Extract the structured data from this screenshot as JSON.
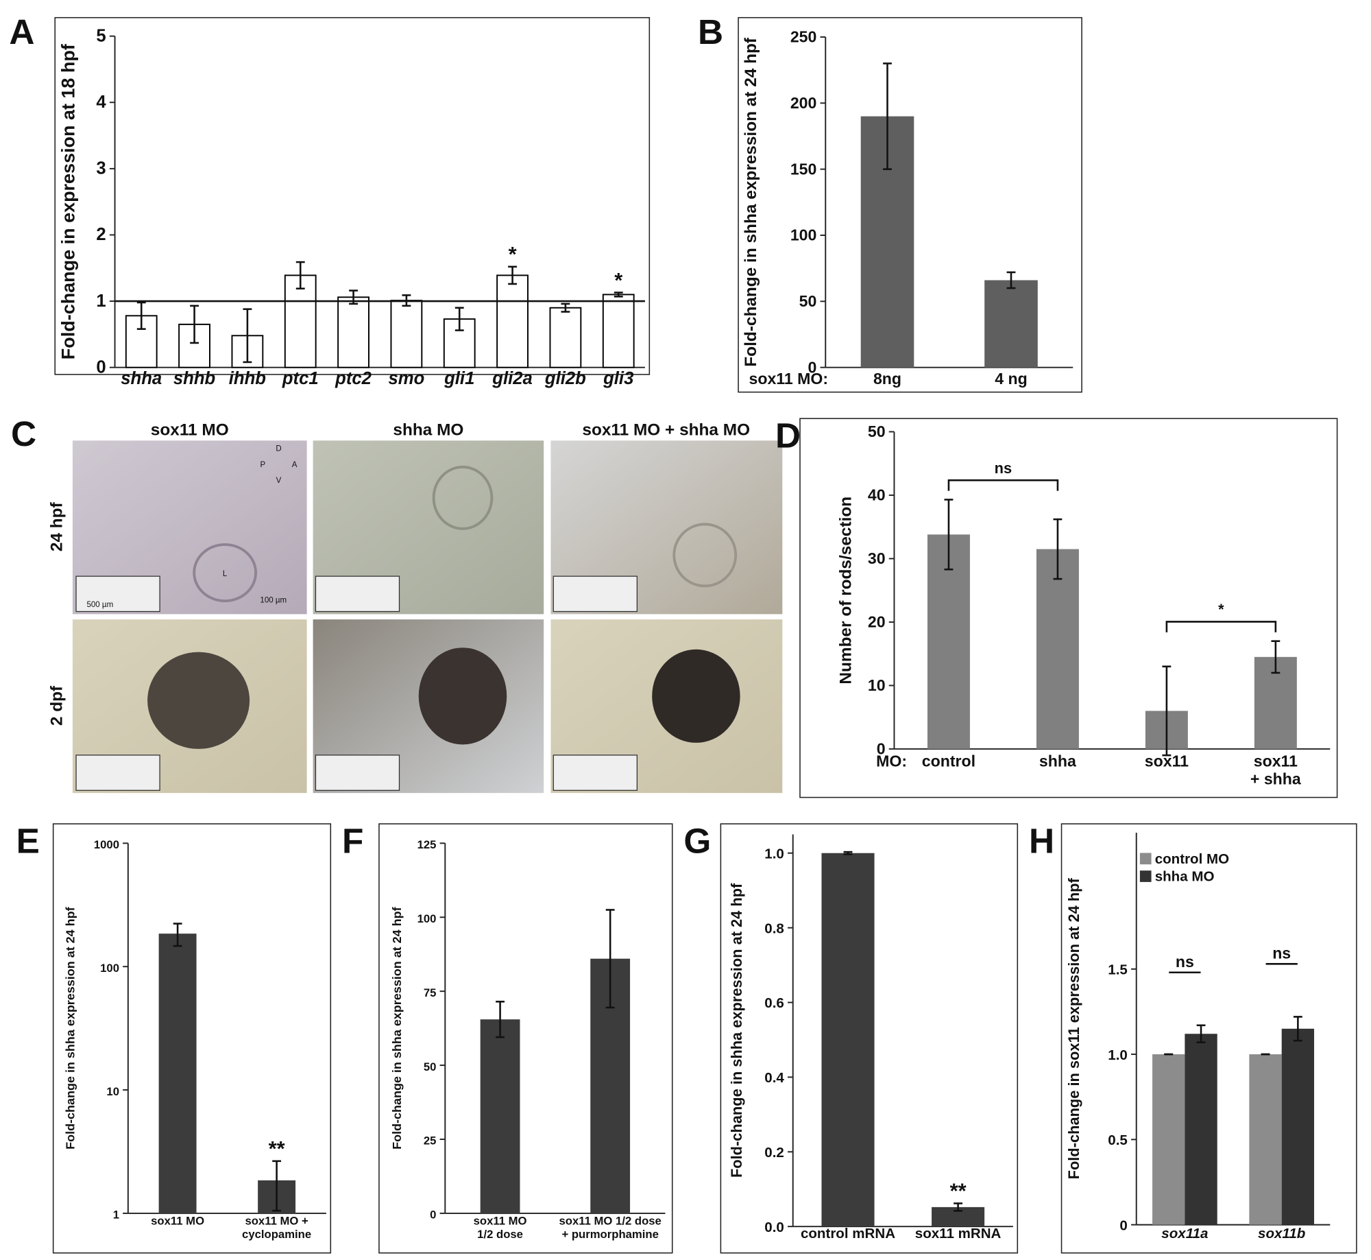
{
  "chart_data": [
    {
      "type": "bar",
      "panel": "A",
      "y_label": "Fold-change in expression at 18 hpf",
      "categories": [
        "shha",
        "shhb",
        "ihhb",
        "ptc1",
        "ptc2",
        "smo",
        "gli1",
        "gli2a",
        "gli2b",
        "gli3"
      ],
      "values": [
        0.78,
        0.65,
        0.48,
        1.39,
        1.06,
        1.01,
        0.73,
        1.39,
        0.9,
        1.1
      ],
      "errors": [
        0.2,
        0.28,
        0.4,
        0.2,
        0.1,
        0.08,
        0.17,
        0.13,
        0.06,
        0.03
      ],
      "value_annotations": [
        null,
        null,
        null,
        null,
        null,
        null,
        null,
        "*",
        null,
        "*"
      ],
      "reference_line": 1,
      "color": "#ffffff",
      "edgecolor": "#000000",
      "ylim": [
        0,
        5
      ],
      "yticks": [
        0,
        1,
        2,
        3,
        4,
        5
      ]
    },
    {
      "type": "bar",
      "panel": "B",
      "y_label": "Fold-change in shha expression at 24 hpf",
      "category_prefix": "sox11 MO:",
      "categories": [
        "8ng",
        "4 ng"
      ],
      "values": [
        190,
        66
      ],
      "errors": [
        40,
        6
      ],
      "color": "#5f5f5f",
      "ylim": [
        0,
        250
      ],
      "yticks": [
        0,
        50,
        100,
        150,
        200,
        250
      ]
    },
    {
      "type": "bar",
      "panel": "D",
      "y_label": "Number of rods/section",
      "category_prefix": "MO:",
      "categories": [
        "control",
        "shha",
        "sox11",
        "sox11\n+ shha"
      ],
      "values": [
        33.8,
        31.5,
        6,
        14.5
      ],
      "errors": [
        5.5,
        4.7,
        7,
        2.5
      ],
      "color": "#808080",
      "brackets": [
        {
          "text": "ns",
          "from": "control",
          "to": "shha"
        },
        {
          "text": "*",
          "from": "sox11",
          "to": "sox11\n+ shha"
        }
      ],
      "ylim": [
        0,
        50
      ],
      "yticks": [
        0,
        10,
        20,
        30,
        40,
        50
      ]
    },
    {
      "type": "bar",
      "panel": "E",
      "y_label": "Fold-change in shha expression at 24 hpf",
      "categories": [
        "sox11 MO",
        "sox11 MO +\ncyclopamine"
      ],
      "values": [
        185,
        1.85
      ],
      "errors": [
        38,
        0.8
      ],
      "color": "#3c3c3c",
      "value_annotations": [
        null,
        "**"
      ],
      "log_scale": true,
      "ylim": [
        1,
        1000
      ],
      "yticks": [
        1,
        10,
        100,
        1000
      ]
    },
    {
      "type": "bar",
      "panel": "F",
      "y_label": "Fold-change in shha expression at 24 hpf",
      "categories": [
        "sox11 MO\n1/2 dose",
        "sox11 MO 1/2 dose\n+ purmorphamine"
      ],
      "values": [
        65.5,
        86
      ],
      "errors": [
        6,
        16.5
      ],
      "color": "#3c3c3c",
      "ylim": [
        0,
        125
      ],
      "yticks": [
        0,
        25,
        50,
        75,
        100,
        125
      ]
    },
    {
      "type": "bar",
      "panel": "G",
      "y_label": "Fold-change in shha expression at 24 hpf",
      "categories": [
        "control mRNA",
        "sox11 mRNA"
      ],
      "values": [
        1.0,
        0.052
      ],
      "errors": [
        0.003,
        0.01
      ],
      "color": "#3c3c3c",
      "value_annotations": [
        null,
        "**"
      ],
      "ylim": [
        0,
        1.05
      ],
      "yticks": [
        {
          "value": 0,
          "label": "0.0"
        },
        0.2,
        0.4,
        0.6,
        0.8,
        {
          "value": 1,
          "label": "1.0"
        }
      ]
    },
    {
      "type": "bar",
      "panel": "H",
      "y_label": "Fold-change in sox11 expression at 24 hpf",
      "categories": [
        "sox11a",
        "sox11b"
      ],
      "series": [
        {
          "name": "control MO",
          "color": "#8c8c8c",
          "values": [
            1.0,
            1.0
          ],
          "errors": [
            0,
            0
          ]
        },
        {
          "name": "shha MO",
          "color": "#333333",
          "values": [
            1.12,
            1.15
          ],
          "errors": [
            0.05,
            0.07
          ]
        }
      ],
      "group_annotations": [
        "ns",
        "ns"
      ],
      "legend": "upper left",
      "ylim": [
        0,
        2.3
      ],
      "yticks": [
        0,
        0.5,
        {
          "value": 1,
          "label": "1.0"
        },
        1.5
      ]
    }
  ],
  "image_panel": {
    "panel": "C",
    "columns": [
      "sox11 MO",
      "shha MO",
      "sox11 MO + shha MO"
    ],
    "rows": [
      "24 hpf",
      "2 dpf"
    ],
    "compass": [
      "D",
      "P",
      "A",
      "V"
    ],
    "lens": "L",
    "scale_bars": [
      "100 µm",
      "500 µm"
    ]
  }
}
